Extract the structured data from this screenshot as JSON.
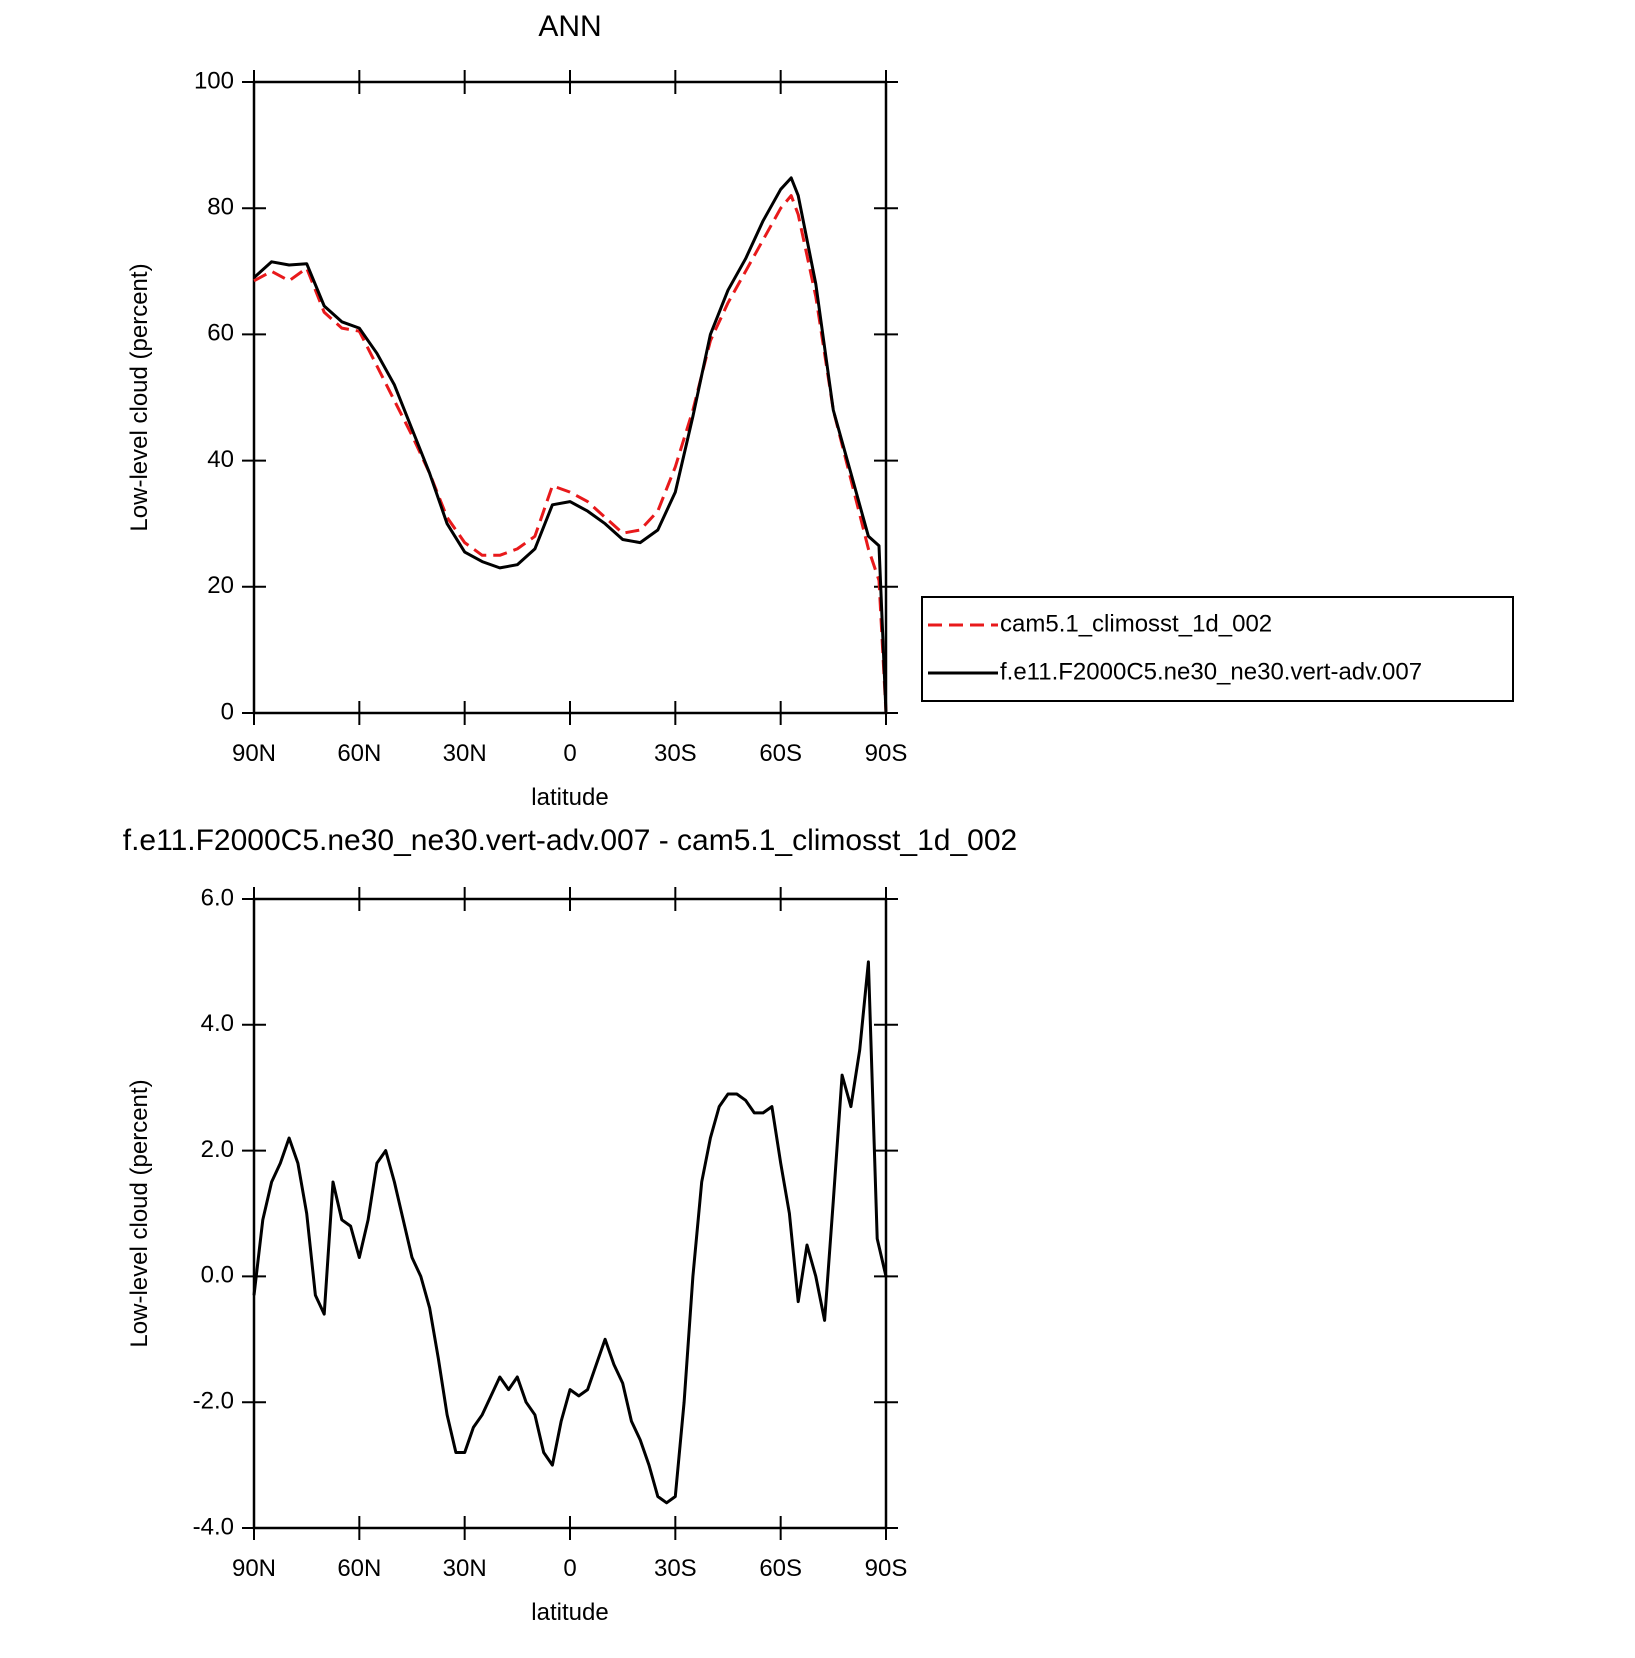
{
  "chart_data": [
    {
      "type": "line",
      "title": "ANN",
      "x_label": "latitude",
      "y_label": "Low-level cloud (percent)",
      "x": [
        90,
        85,
        80,
        75,
        70,
        65,
        60,
        55,
        50,
        45,
        40,
        35,
        30,
        25,
        20,
        15,
        10,
        5,
        0,
        -5,
        -10,
        -15,
        -20,
        -25,
        -30,
        -35,
        -40,
        -45,
        -50,
        -55,
        -60,
        -63,
        -65,
        -70,
        -75,
        -80,
        -85,
        -88,
        -90
      ],
      "series": [
        {
          "name": "cam5.1_climosst_1d_002",
          "color": "#e8191b",
          "line_style": "dashed",
          "values": [
            68.5,
            70,
            68.5,
            70.5,
            63.5,
            61,
            60.5,
            55,
            49.5,
            44,
            38,
            31,
            27,
            25,
            25,
            26,
            28,
            36,
            35,
            33.5,
            31,
            28.5,
            29,
            32,
            39,
            48,
            59,
            65,
            70,
            75,
            80,
            82,
            79,
            66,
            48,
            37,
            26,
            21,
            0
          ]
        },
        {
          "name": "f.e11.F2000C5.ne30_ne30.vert-adv.007",
          "color": "#000000",
          "line_style": "solid",
          "values": [
            69,
            71.5,
            71,
            71.2,
            64.5,
            62,
            61,
            57,
            52,
            45,
            38,
            30,
            25.5,
            24,
            23,
            23.5,
            26,
            33,
            33.5,
            32,
            30,
            27.5,
            27,
            29,
            35,
            47,
            60,
            67,
            72,
            78,
            83,
            84.8,
            82,
            68,
            48,
            38,
            28,
            26.5,
            0
          ]
        }
      ],
      "xlim": [
        90,
        -90
      ],
      "xticks": [
        {
          "value": 90,
          "label": "90N"
        },
        {
          "value": 60,
          "label": "60N"
        },
        {
          "value": 30,
          "label": "30N"
        },
        0,
        {
          "value": -30,
          "label": "30S"
        },
        {
          "value": -60,
          "label": "60S"
        },
        {
          "value": -90,
          "label": "90S"
        }
      ],
      "ylim": [
        0,
        100
      ],
      "yticks": [
        0,
        20,
        40,
        60,
        80,
        100
      ],
      "legend": "right"
    },
    {
      "type": "line",
      "title": "f.e11.F2000C5.ne30_ne30.vert-adv.007 - cam5.1_climosst_1d_002",
      "x_label": "latitude",
      "y_label": "Low-level cloud (percent)",
      "x": [
        90,
        87.5,
        85,
        82.5,
        80,
        77.5,
        75,
        72.5,
        70,
        67.5,
        65,
        62.5,
        60,
        57.5,
        55,
        52.5,
        50,
        47.5,
        45,
        42.5,
        40,
        37.5,
        35,
        32.5,
        30,
        27.5,
        25,
        22.5,
        20,
        17.5,
        15,
        12.5,
        10,
        7.5,
        5,
        2.5,
        0,
        -2.5,
        -5,
        -7.5,
        -10,
        -12.5,
        -15,
        -17.5,
        -20,
        -22.5,
        -25,
        -27.5,
        -30,
        -32.5,
        -35,
        -37.5,
        -40,
        -42.5,
        -45,
        -47.5,
        -50,
        -52.5,
        -55,
        -57.5,
        -60,
        -62.5,
        -65,
        -67.5,
        -70,
        -72.5,
        -75,
        -77.5,
        -80,
        -82.5,
        -85,
        -87.5,
        -90
      ],
      "values": [
        -0.3,
        0.9,
        1.5,
        1.8,
        2.2,
        1.8,
        1.0,
        -0.3,
        -0.6,
        1.5,
        0.9,
        0.8,
        0.3,
        0.9,
        1.8,
        2.0,
        1.5,
        0.9,
        0.3,
        0,
        -0.5,
        -1.3,
        -2.2,
        -2.8,
        -2.8,
        -2.4,
        -2.2,
        -1.9,
        -1.6,
        -1.8,
        -1.6,
        -2.0,
        -2.2,
        -2.8,
        -3.0,
        -2.3,
        -1.8,
        -1.9,
        -1.8,
        -1.4,
        -1.0,
        -1.4,
        -1.7,
        -2.3,
        -2.6,
        -3.0,
        -3.5,
        -3.6,
        -3.5,
        -2.0,
        0.0,
        1.5,
        2.2,
        2.7,
        2.9,
        2.9,
        2.8,
        2.6,
        2.6,
        2.7,
        1.8,
        1.0,
        -0.4,
        0.5,
        0.0,
        -0.7,
        1.2,
        3.2,
        2.7,
        3.6,
        5.0,
        0.6,
        0.0
      ],
      "color": "#000000",
      "xlim": [
        90,
        -90
      ],
      "xticks": [
        {
          "value": 90,
          "label": "90N"
        },
        {
          "value": 60,
          "label": "60N"
        },
        {
          "value": 30,
          "label": "30N"
        },
        0,
        {
          "value": -30,
          "label": "30S"
        },
        {
          "value": -60,
          "label": "60S"
        },
        {
          "value": -90,
          "label": "90S"
        }
      ],
      "ylim": [
        -4,
        6
      ],
      "yticks": [
        {
          "value": -4,
          "label": "-4.0"
        },
        {
          "value": -2,
          "label": "-2.0"
        },
        {
          "value": 0,
          "label": "0.0"
        },
        {
          "value": 2,
          "label": "2.0"
        },
        {
          "value": 4,
          "label": "4.0"
        },
        {
          "value": 6,
          "label": "6.0"
        }
      ]
    }
  ]
}
